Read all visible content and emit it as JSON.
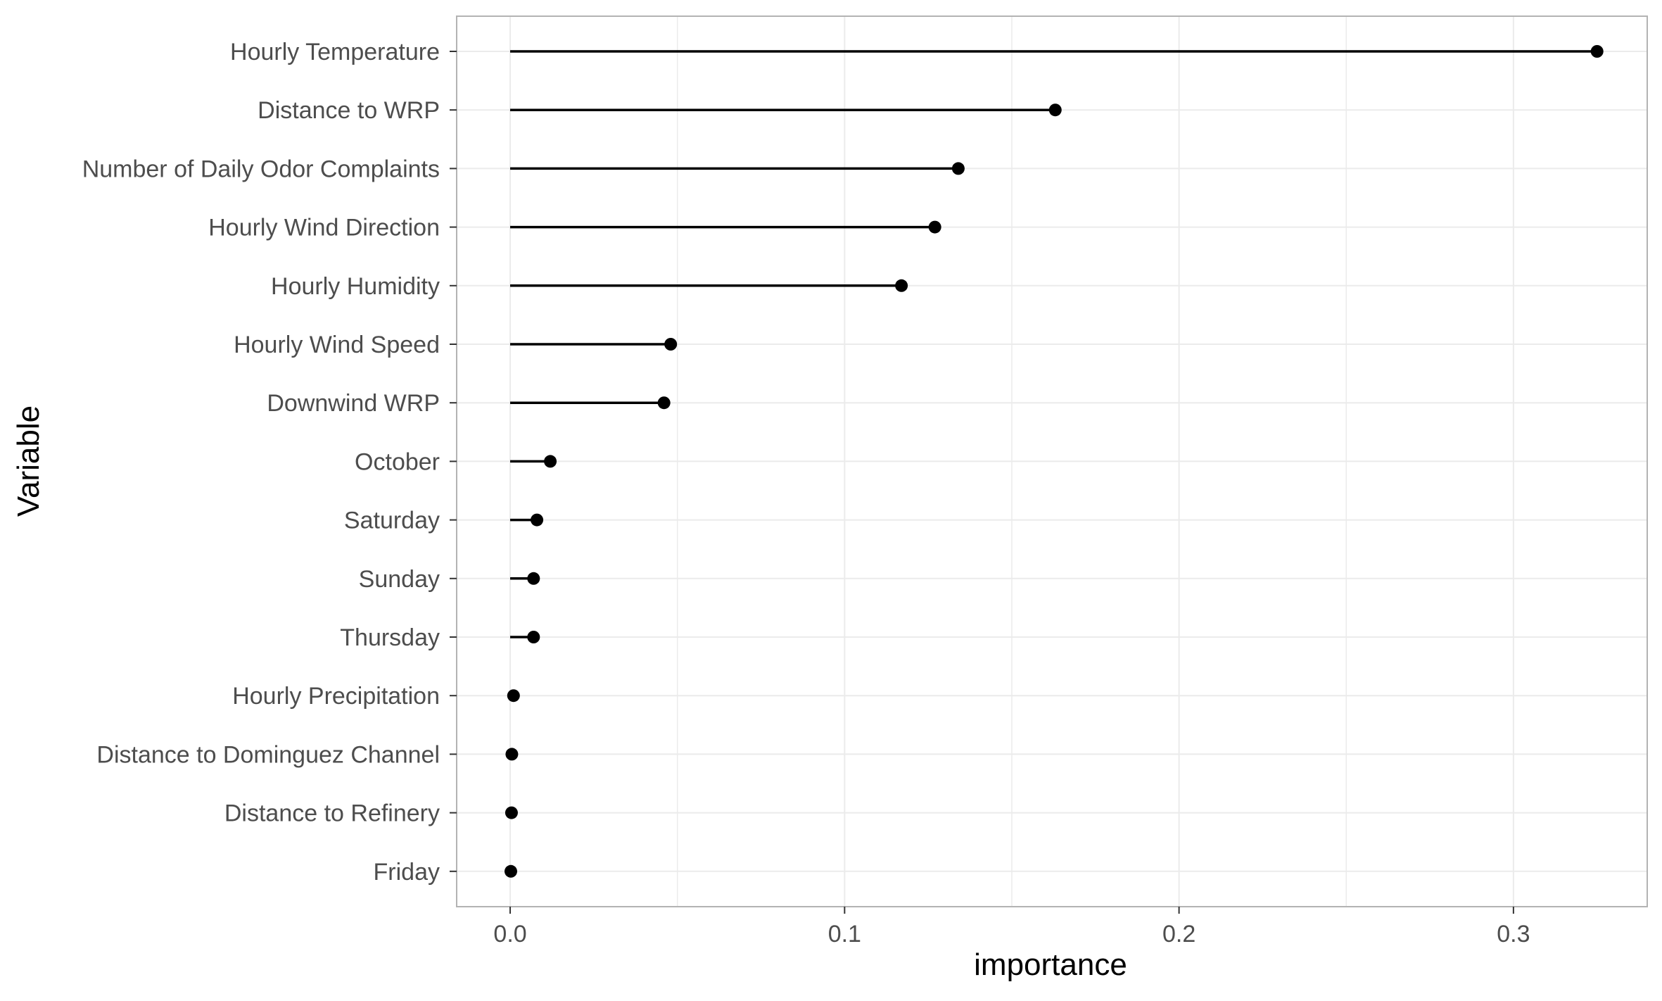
{
  "chart_data": {
    "type": "lollipop",
    "xlabel": "importance",
    "ylabel": "Variable",
    "xlim": [
      -0.016,
      0.34
    ],
    "x_ticks": [
      0.0,
      0.1,
      0.2,
      0.3
    ],
    "x_tick_labels": [
      "0.0",
      "0.1",
      "0.2",
      "0.3"
    ],
    "x_minor_ticks": [
      0.05,
      0.15,
      0.25
    ],
    "grid": true,
    "legend": "none",
    "categories": [
      "Hourly Temperature",
      "Distance to WRP",
      "Number of Daily Odor Complaints",
      "Hourly Wind Direction",
      "Hourly Humidity",
      "Hourly Wind Speed",
      "Downwind WRP",
      "October",
      "Saturday",
      "Sunday",
      "Thursday",
      "Hourly Precipitation",
      "Distance to Dominguez Channel",
      "Distance to Refinery",
      "Friday"
    ],
    "values": [
      0.325,
      0.163,
      0.134,
      0.127,
      0.117,
      0.048,
      0.046,
      0.012,
      0.008,
      0.007,
      0.007,
      0.001,
      0.0005,
      0.0004,
      0.0002
    ],
    "colors": {
      "mark": "#000000",
      "grid": "#ebebeb",
      "panel_border": "#b3b3b3",
      "tick_text": "#4d4d4d",
      "axis_title": "#000000"
    }
  }
}
